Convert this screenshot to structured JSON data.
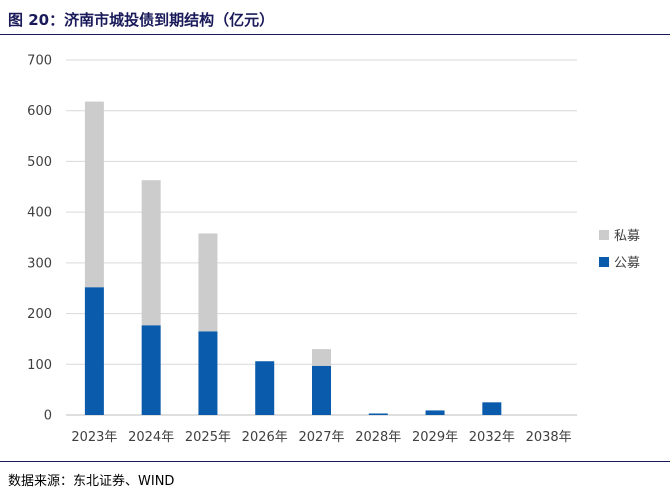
{
  "figure": {
    "title": "图 20：济南市城投债到期结构（亿元）",
    "source": "数据来源：东北证券、WIND"
  },
  "colors": {
    "public": "#0a5bab",
    "private": "#cccccc",
    "grid": "#d9d9d9",
    "title": "#1a1a5a",
    "axis_text": "#404040"
  },
  "chart_data": {
    "type": "bar",
    "stacked": true,
    "title": "济南市城投债到期结构（亿元）",
    "xlabel": "",
    "ylabel": "",
    "ylim": [
      0,
      700
    ],
    "yticks": [
      0,
      100,
      200,
      300,
      400,
      500,
      600,
      700
    ],
    "grid": true,
    "legend_position": "right",
    "categories": [
      "2023年",
      "2024年",
      "2025年",
      "2026年",
      "2027年",
      "2028年",
      "2029年",
      "2032年",
      "2038年"
    ],
    "series": [
      {
        "name": "公募",
        "values": [
          252,
          177,
          165,
          106,
          97,
          3,
          9,
          25,
          0
        ]
      },
      {
        "name": "私募",
        "values": [
          366,
          286,
          193,
          0,
          33,
          0,
          0,
          0,
          0
        ]
      }
    ]
  }
}
